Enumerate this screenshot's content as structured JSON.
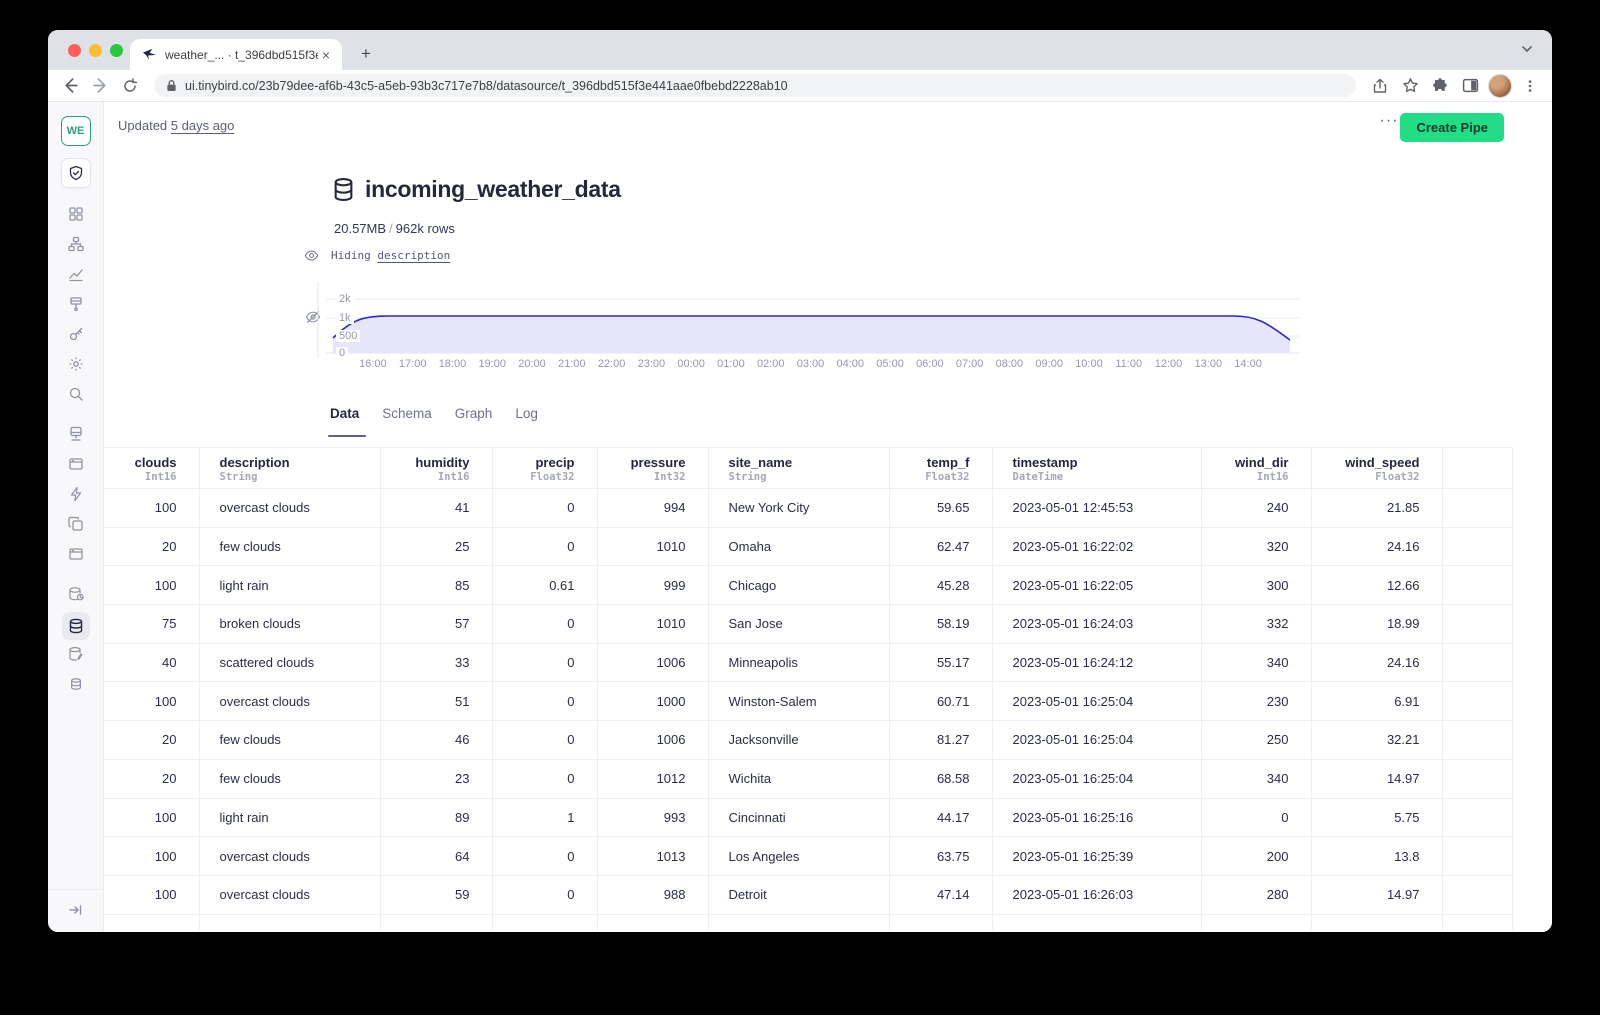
{
  "browser": {
    "tab_title": "weather_... · t_396dbd515f3e4",
    "new_tab_icon": "+",
    "url": "ui.tinybird.co/23b79dee-af6b-43c5-a5eb-93b3c717e7b8/datasource/t_396dbd515f3e441aae0fbebd2228ab10"
  },
  "workspace": {
    "badge": "WE"
  },
  "header": {
    "updated_prefix": "Updated",
    "updated_link": "5 days ago",
    "more_label": "···",
    "create_pipe_label": "Create Pipe"
  },
  "datasource": {
    "title": "incoming_weather_data",
    "size": "20.57MB",
    "separator": "/",
    "rows_label": "962k rows",
    "hiding_label": "Hiding",
    "hiding_link": "description"
  },
  "tabs": [
    {
      "label": "Data",
      "active": true
    },
    {
      "label": "Schema",
      "active": false
    },
    {
      "label": "Graph",
      "active": false
    },
    {
      "label": "Log",
      "active": false
    }
  ],
  "chart_data": {
    "type": "area",
    "title": "",
    "xlabel": "",
    "ylabel": "",
    "categories": [
      "16:00",
      "17:00",
      "18:00",
      "19:00",
      "20:00",
      "21:00",
      "22:00",
      "23:00",
      "00:00",
      "01:00",
      "02:00",
      "03:00",
      "04:00",
      "05:00",
      "06:00",
      "07:00",
      "08:00",
      "09:00",
      "10:00",
      "11:00",
      "12:00",
      "13:00",
      "14:00"
    ],
    "values": [
      1040,
      1050,
      1050,
      1050,
      1050,
      1050,
      1050,
      1050,
      1050,
      1050,
      1050,
      1050,
      1050,
      1050,
      1050,
      1050,
      1050,
      1050,
      1050,
      1050,
      1050,
      1050,
      1000
    ],
    "edge_start_value": 500,
    "edge_end_value": 500,
    "yticks": [
      "2k",
      "1k",
      "500",
      "0"
    ],
    "ylim": [
      0,
      2000
    ],
    "grid": true,
    "legend": "none",
    "line_color": "#2D23D9",
    "fill_color": "#E7E5F9"
  },
  "table": {
    "columns": [
      {
        "name": "clouds",
        "type": "Int16",
        "align": "right"
      },
      {
        "name": "description",
        "type": "String",
        "align": "left"
      },
      {
        "name": "humidity",
        "type": "Int16",
        "align": "right"
      },
      {
        "name": "precip",
        "type": "Float32",
        "align": "right"
      },
      {
        "name": "pressure",
        "type": "Int32",
        "align": "right"
      },
      {
        "name": "site_name",
        "type": "String",
        "align": "left"
      },
      {
        "name": "temp_f",
        "type": "Float32",
        "align": "right"
      },
      {
        "name": "timestamp",
        "type": "DateTime",
        "align": "left"
      },
      {
        "name": "wind_dir",
        "type": "Int16",
        "align": "right"
      },
      {
        "name": "wind_speed",
        "type": "Float32",
        "align": "right"
      },
      {
        "name": "",
        "type": "",
        "align": "left"
      }
    ],
    "rows": [
      [
        "100",
        "overcast clouds",
        "41",
        "0",
        "994",
        "New York City",
        "59.65",
        "2023-05-01 12:45:53",
        "240",
        "21.85"
      ],
      [
        "20",
        "few clouds",
        "25",
        "0",
        "1010",
        "Omaha",
        "62.47",
        "2023-05-01 16:22:02",
        "320",
        "24.16"
      ],
      [
        "100",
        "light rain",
        "85",
        "0.61",
        "999",
        "Chicago",
        "45.28",
        "2023-05-01 16:22:05",
        "300",
        "12.66"
      ],
      [
        "75",
        "broken clouds",
        "57",
        "0",
        "1010",
        "San Jose",
        "58.19",
        "2023-05-01 16:24:03",
        "332",
        "18.99"
      ],
      [
        "40",
        "scattered clouds",
        "33",
        "0",
        "1006",
        "Minneapolis",
        "55.17",
        "2023-05-01 16:24:12",
        "340",
        "24.16"
      ],
      [
        "100",
        "overcast clouds",
        "51",
        "0",
        "1000",
        "Winston-Salem",
        "60.71",
        "2023-05-01 16:25:04",
        "230",
        "6.91"
      ],
      [
        "20",
        "few clouds",
        "46",
        "0",
        "1006",
        "Jacksonville",
        "81.27",
        "2023-05-01 16:25:04",
        "250",
        "32.21"
      ],
      [
        "20",
        "few clouds",
        "23",
        "0",
        "1012",
        "Wichita",
        "68.58",
        "2023-05-01 16:25:04",
        "340",
        "14.97"
      ],
      [
        "100",
        "light rain",
        "89",
        "1",
        "993",
        "Cincinnati",
        "44.17",
        "2023-05-01 16:25:16",
        "0",
        "5.75"
      ],
      [
        "100",
        "overcast clouds",
        "64",
        "0",
        "1013",
        "Los Angeles",
        "63.75",
        "2023-05-01 16:25:39",
        "200",
        "13.8"
      ],
      [
        "100",
        "overcast clouds",
        "59",
        "0",
        "988",
        "Detroit",
        "47.14",
        "2023-05-01 16:26:03",
        "280",
        "14.97"
      ]
    ]
  },
  "colors": {
    "accent_green": "#23DD86",
    "brand_navy": "#25283D",
    "chart_line": "#2D23D9",
    "chart_fill": "#E7E5F9",
    "workspace_teal": "#2E9E82"
  }
}
